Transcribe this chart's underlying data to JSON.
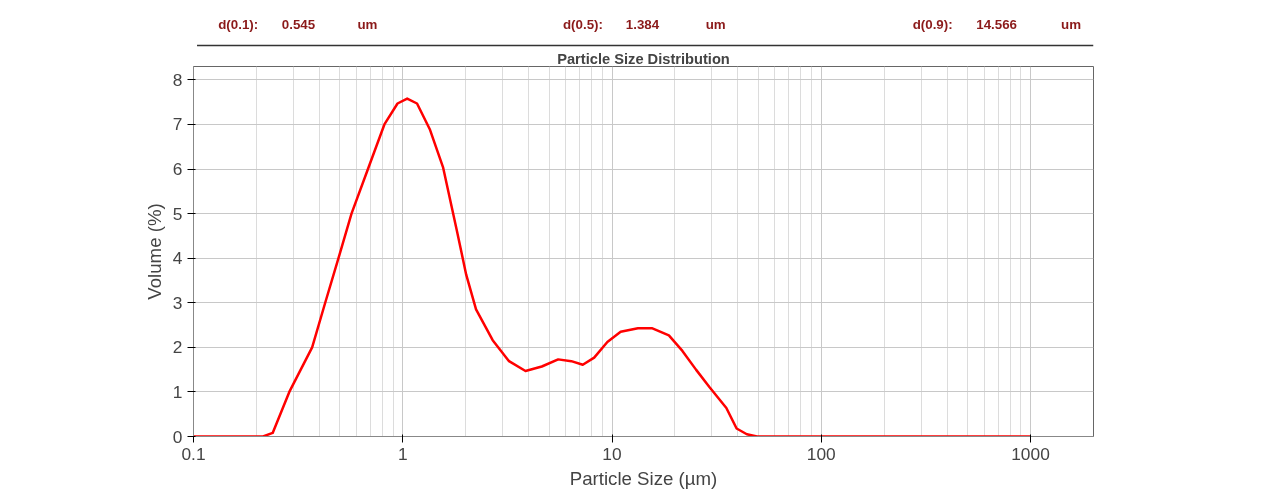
{
  "chart_data": {
    "type": "line",
    "title": "Particle Size Distribution",
    "xlabel": "Particle Size (µm)",
    "ylabel": "Volume (%)",
    "annotations": [
      "d(0.1):",
      "0.545",
      "um",
      "d(0.5):",
      "1.384",
      "um",
      "d(0.9):",
      "14.566",
      "um"
    ],
    "log": "x",
    "xlim": [
      0.1,
      2000
    ],
    "ylim": [
      0,
      8.3
    ],
    "xticks": [
      0.1,
      1,
      10,
      100,
      1000
    ],
    "yticks": [
      0,
      1,
      2,
      3,
      4,
      5,
      6,
      7,
      8
    ],
    "grid": true,
    "marker": "none",
    "line_style": "solid",
    "series": [
      {
        "color": "#ff0000",
        "x": [
          0.1,
          0.215,
          0.239,
          0.287,
          0.369,
          0.426,
          0.493,
          0.569,
          0.682,
          0.817,
          0.944,
          1.05,
          1.17,
          1.35,
          1.56,
          1.81,
          2.01,
          2.24,
          2.69,
          3.22,
          3.86,
          4.62,
          5.53,
          6.39,
          7.25,
          8.22,
          9.5,
          11.0,
          13.3,
          15.5,
          18.7,
          21.7,
          25.2,
          29.2,
          35.2,
          39.4,
          44.1,
          49.3,
          1000
        ],
        "values": [
          0,
          0,
          0.08,
          1.0,
          2.0,
          3.0,
          4.0,
          5.0,
          6.0,
          7.0,
          7.47,
          7.58,
          7.47,
          6.88,
          6.03,
          4.64,
          3.63,
          2.85,
          2.16,
          1.69,
          1.47,
          1.57,
          1.73,
          1.69,
          1.61,
          1.77,
          2.12,
          2.35,
          2.43,
          2.43,
          2.27,
          1.92,
          1.5,
          1.11,
          0.64,
          0.18,
          0.05,
          0,
          0
        ]
      }
    ]
  }
}
